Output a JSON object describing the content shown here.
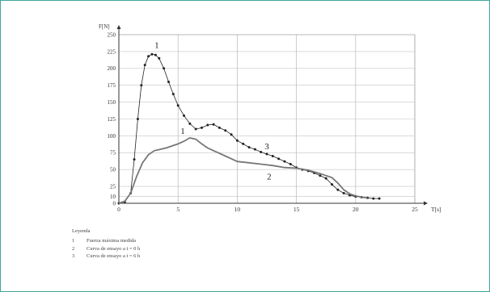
{
  "chart_data": {
    "type": "line",
    "xlabel": "T[s]",
    "ylabel": "F[N]",
    "xlim": [
      0,
      25
    ],
    "ylim": [
      0,
      250
    ],
    "x_ticks": [
      0,
      5,
      10,
      15,
      20,
      25
    ],
    "y_ticks": [
      0,
      10,
      25,
      50,
      75,
      100,
      125,
      150,
      175,
      200,
      225,
      250
    ],
    "grid": true,
    "series": [
      {
        "name": "1",
        "style": "dotted",
        "color": "#222222",
        "x": [
          0,
          0.5,
          1.0,
          1.3,
          1.6,
          1.9,
          2.2,
          2.5,
          2.8,
          3.1,
          3.4,
          3.8,
          4.2,
          4.6,
          5.0,
          5.5,
          6.0,
          6.5,
          7.0,
          7.5,
          8.0,
          8.5,
          9.0,
          9.5,
          10.0,
          10.5,
          11.0,
          11.5,
          12.0,
          12.5,
          13.0,
          13.5,
          14.0,
          14.5,
          15.0,
          15.5,
          16.0,
          16.5,
          17.0,
          17.5,
          18.0,
          18.5,
          19.0,
          19.5,
          20.0,
          20.5,
          21.0,
          21.5,
          22.0
        ],
        "values": [
          0,
          2,
          15,
          65,
          125,
          175,
          205,
          218,
          221,
          220,
          215,
          200,
          180,
          162,
          145,
          130,
          118,
          110,
          112,
          116,
          117,
          112,
          108,
          102,
          93,
          88,
          83,
          80,
          76,
          73,
          70,
          66,
          62,
          58,
          53,
          50,
          48,
          45,
          41,
          37,
          28,
          20,
          15,
          12,
          10,
          9,
          8,
          7,
          7
        ]
      },
      {
        "name": "3",
        "style": "solid",
        "color": "#777777",
        "x": [
          0,
          0.5,
          1.0,
          1.5,
          2.0,
          2.5,
          3.0,
          3.5,
          4.0,
          4.5,
          5.0,
          5.5,
          6.0,
          6.5,
          7.0,
          7.5,
          8.0,
          8.5,
          9.0,
          9.5,
          10.0,
          11.0,
          12.0,
          13.0,
          14.0,
          15.0,
          16.0,
          17.0,
          18.0,
          18.5,
          19.0,
          19.5,
          20.0,
          20.5,
          21.0
        ],
        "values": [
          0,
          3,
          15,
          40,
          60,
          72,
          78,
          80,
          82,
          85,
          88,
          92,
          97,
          95,
          88,
          82,
          78,
          74,
          70,
          66,
          62,
          60,
          58,
          56,
          53,
          52,
          49,
          44,
          38,
          30,
          20,
          14,
          11,
          9,
          8
        ]
      }
    ],
    "annotations": [
      {
        "text": "1",
        "x": 3.2,
        "y": 230
      },
      {
        "text": "1",
        "x": 5.4,
        "y": 103
      },
      {
        "text": "3",
        "x": 12.5,
        "y": 80
      },
      {
        "text": "2",
        "x": 12.7,
        "y": 35
      }
    ],
    "legend": {
      "title": "Leyenda",
      "items": [
        {
          "num": "1",
          "label": "Fuerza máxima medida"
        },
        {
          "num": "2",
          "label": "Curva de ensayo a t = 0 h"
        },
        {
          "num": "3",
          "label": "Curva de ensayo a t = 6 h"
        }
      ]
    }
  }
}
